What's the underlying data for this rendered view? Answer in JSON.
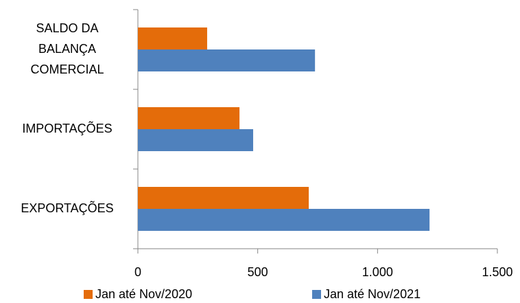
{
  "chart_data": {
    "type": "hbar",
    "categories": [
      "SALDO DA\nBALANÇA\nCOMERCIAL",
      "IMPORTAÇÕES",
      "EXPORTAÇÕES"
    ],
    "series": [
      {
        "name": "Jan até Nov/2020",
        "color": "#e46c0a",
        "values": [
          289,
          424,
          713
        ]
      },
      {
        "name": "Jan até Nov/2021",
        "color": "#4f81bd",
        "values": [
          739,
          481,
          1217
        ]
      }
    ],
    "xlim": [
      0,
      1500
    ],
    "xticks": [
      0,
      500,
      {
        "value": 1000,
        "label": "1.000"
      },
      {
        "value": 1500,
        "label": "1.500"
      }
    ],
    "legend": "bottom"
  }
}
